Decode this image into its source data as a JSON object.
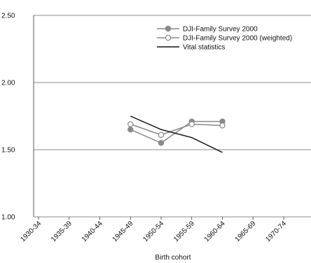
{
  "chart_data": {
    "type": "line",
    "title": "",
    "xlabel": "Birth cohort",
    "ylabel": "",
    "categories": [
      "1930-34",
      "1935-39",
      "1940-44",
      "1945-49",
      "1950-54",
      "1955-59",
      "1960-64",
      "1965-69",
      "1970-74"
    ],
    "ylim": [
      1.0,
      2.5
    ],
    "yticks": [
      "1.00",
      "1.50",
      "2.00",
      "2.50"
    ],
    "grid": "horizontal",
    "legend_position": "top-right",
    "series": [
      {
        "name": "DJI-Family Survey 2000",
        "marker": "filled-circle",
        "color": "#8a8a8a",
        "values": [
          null,
          null,
          null,
          1.65,
          1.55,
          1.71,
          1.71,
          null,
          null
        ]
      },
      {
        "name": "DJI-Family Survey 2000 (weighted)",
        "marker": "open-circle",
        "color": "#8a8a8a",
        "values": [
          null,
          null,
          null,
          1.69,
          1.61,
          1.69,
          1.68,
          null,
          null
        ]
      },
      {
        "name": "Vital statistics",
        "marker": "none",
        "color": "#111111",
        "values": [
          null,
          null,
          null,
          1.75,
          1.65,
          1.59,
          1.48,
          null,
          null
        ]
      }
    ]
  }
}
